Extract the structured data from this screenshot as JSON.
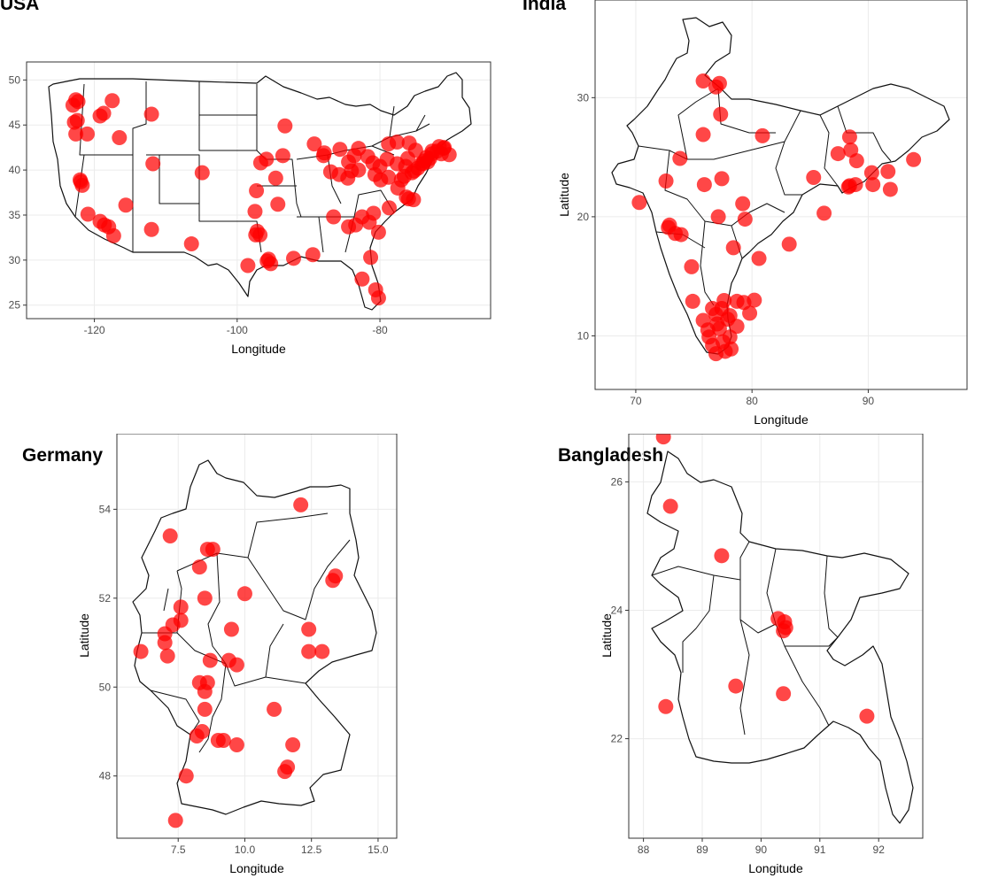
{
  "chart_data": [
    {
      "type": "scatter",
      "title": "USA",
      "xlabel": "Longitude",
      "ylabel": "",
      "xlim": [
        -129.5,
        -64.5
      ],
      "ylim": [
        23.5,
        52
      ],
      "xticks": [
        -120,
        -100,
        -80
      ],
      "yticks": [
        25,
        30,
        35,
        40,
        45,
        50
      ],
      "grid": true,
      "points": [
        [
          -122.6,
          47.8
        ],
        [
          -122.3,
          47.6
        ],
        [
          -123,
          47.2
        ],
        [
          -122.4,
          45.5
        ],
        [
          -122.8,
          45.3
        ],
        [
          -122.6,
          44
        ],
        [
          -121,
          44
        ],
        [
          -119.2,
          46
        ],
        [
          -118.7,
          46.3
        ],
        [
          -117.5,
          47.7
        ],
        [
          -116.5,
          43.6
        ],
        [
          -112,
          46.2
        ],
        [
          -111.8,
          40.7
        ],
        [
          -121.9,
          38.7
        ],
        [
          -121.7,
          38.3
        ],
        [
          -122,
          38.9
        ],
        [
          -120.9,
          35.1
        ],
        [
          -119.2,
          34.3
        ],
        [
          -118.6,
          33.9
        ],
        [
          -118,
          33.7
        ],
        [
          -117.3,
          32.7
        ],
        [
          -115.6,
          36.1
        ],
        [
          -112,
          33.4
        ],
        [
          -104.9,
          39.7
        ],
        [
          -106.4,
          31.8
        ],
        [
          -97.4,
          32.8
        ],
        [
          -96.8,
          32.8
        ],
        [
          -97.2,
          33.2
        ],
        [
          -98.5,
          29.4
        ],
        [
          -95.8,
          29.9
        ],
        [
          -95.3,
          29.6
        ],
        [
          -95.6,
          30.1
        ],
        [
          -97.5,
          35.4
        ],
        [
          -97.3,
          37.7
        ],
        [
          -95.9,
          41.2
        ],
        [
          -94.6,
          39.1
        ],
        [
          -93.6,
          41.6
        ],
        [
          -94.3,
          36.2
        ],
        [
          -93.3,
          44.9
        ],
        [
          -89.2,
          42.9
        ],
        [
          -87.8,
          41.9
        ],
        [
          -87.9,
          41.6
        ],
        [
          -96.7,
          40.8
        ],
        [
          -92.1,
          30.2
        ],
        [
          -89.4,
          30.6
        ],
        [
          -86.5,
          34.8
        ],
        [
          -84.4,
          33.7
        ],
        [
          -83.4,
          33.9
        ],
        [
          -82.5,
          34.8
        ],
        [
          -81.5,
          34.2
        ],
        [
          -80.9,
          35.2
        ],
        [
          -80.2,
          33.1
        ],
        [
          -82.5,
          27.9
        ],
        [
          -81.3,
          30.3
        ],
        [
          -80.6,
          26.7
        ],
        [
          -80.2,
          25.8
        ],
        [
          -86.9,
          39.8
        ],
        [
          -85.7,
          39.5
        ],
        [
          -84.5,
          39.1
        ],
        [
          -84,
          39.9
        ],
        [
          -83,
          40
        ],
        [
          -84.4,
          40.9
        ],
        [
          -83.6,
          41.6
        ],
        [
          -85.6,
          42.3
        ],
        [
          -83,
          42.4
        ],
        [
          -81.7,
          41.5
        ],
        [
          -81,
          40.8
        ],
        [
          -80,
          40.4
        ],
        [
          -80.7,
          39.5
        ],
        [
          -79.9,
          38.9
        ],
        [
          -78.8,
          39.2
        ],
        [
          -79,
          41.2
        ],
        [
          -77.5,
          38
        ],
        [
          -77,
          38.9
        ],
        [
          -76.6,
          39.3
        ],
        [
          -76.3,
          37
        ],
        [
          -75.5,
          39.7
        ],
        [
          -75.2,
          39.9
        ],
        [
          -74.7,
          40.2
        ],
        [
          -74.2,
          40.7
        ],
        [
          -74,
          40.7
        ],
        [
          -73.8,
          41
        ],
        [
          -73.5,
          41.4
        ],
        [
          -73,
          41.3
        ],
        [
          -72.7,
          41.8
        ],
        [
          -71.4,
          41.8
        ],
        [
          -71.1,
          42.4
        ],
        [
          -71,
          42.5
        ],
        [
          -70.3,
          41.7
        ],
        [
          -75.9,
          43
        ],
        [
          -77.6,
          43.1
        ],
        [
          -78.8,
          42.9
        ],
        [
          -75,
          42.2
        ],
        [
          -76.1,
          41.3
        ],
        [
          -76.4,
          40.4
        ],
        [
          -77.6,
          40.7
        ],
        [
          -73.3,
          40.9
        ],
        [
          -72,
          42.1
        ],
        [
          -72.7,
          42.1
        ],
        [
          -71.7,
          42.6
        ],
        [
          -78.7,
          35.8
        ],
        [
          -76,
          36.8
        ],
        [
          -75.3,
          36.7
        ]
      ]
    },
    {
      "type": "scatter",
      "title": "India",
      "xlabel": "Longitude",
      "ylabel": "Latitude",
      "xlim": [
        66.5,
        98.5
      ],
      "ylim": [
        5.5,
        38.2
      ],
      "xticks": [
        70,
        80,
        90
      ],
      "yticks": [
        10,
        20,
        30
      ],
      "grid": true,
      "points": [
        [
          75.8,
          31.4
        ],
        [
          76.9,
          30.9
        ],
        [
          77.2,
          31.2
        ],
        [
          77.3,
          28.6
        ],
        [
          80.9,
          26.8
        ],
        [
          75.8,
          26.9
        ],
        [
          73.8,
          24.9
        ],
        [
          72.6,
          23
        ],
        [
          70.3,
          21.2
        ],
        [
          72.8,
          19.1
        ],
        [
          72.9,
          19.3
        ],
        [
          73.4,
          18.6
        ],
        [
          73.9,
          18.5
        ],
        [
          75.9,
          22.7
        ],
        [
          77.4,
          23.2
        ],
        [
          79.2,
          21.1
        ],
        [
          77.1,
          20
        ],
        [
          79.4,
          19.8
        ],
        [
          78.4,
          17.4
        ],
        [
          80.6,
          16.5
        ],
        [
          83.2,
          17.7
        ],
        [
          74.8,
          15.8
        ],
        [
          74.9,
          12.9
        ],
        [
          75.8,
          11.3
        ],
        [
          76.2,
          10.5
        ],
        [
          76.3,
          9.9
        ],
        [
          76.9,
          8.5
        ],
        [
          77.6,
          12.97
        ],
        [
          77.4,
          12.3
        ],
        [
          76.6,
          12.3
        ],
        [
          77,
          11
        ],
        [
          78.1,
          11.7
        ],
        [
          78.7,
          10.8
        ],
        [
          78.1,
          9.9
        ],
        [
          77.7,
          8.7
        ],
        [
          80.2,
          13
        ],
        [
          79.8,
          11.9
        ],
        [
          78.7,
          12.9
        ],
        [
          77.9,
          11.4
        ],
        [
          77.2,
          10.6
        ],
        [
          76.9,
          11.8
        ],
        [
          77.5,
          9.5
        ],
        [
          76.6,
          9.2
        ],
        [
          78.2,
          8.9
        ],
        [
          79.3,
          12.8
        ],
        [
          85.3,
          23.3
        ],
        [
          86.2,
          20.3
        ],
        [
          88.3,
          22.5
        ],
        [
          88.4,
          22.6
        ],
        [
          88.9,
          22.7
        ],
        [
          87.4,
          25.3
        ],
        [
          88.4,
          26.7
        ],
        [
          88.5,
          25.6
        ],
        [
          89,
          24.7
        ],
        [
          90.3,
          23.7
        ],
        [
          90.4,
          22.7
        ],
        [
          91.7,
          23.8
        ],
        [
          91.9,
          22.3
        ],
        [
          93.9,
          24.8
        ]
      ]
    },
    {
      "type": "scatter",
      "title": "Germany",
      "xlabel": "Longitude",
      "ylabel": "Latitude",
      "xlim": [
        5.2,
        15.7
      ],
      "ylim": [
        46.6,
        55.7
      ],
      "xticks": [
        7.5,
        10.0,
        12.5,
        15.0
      ],
      "yticks": [
        48,
        50,
        52,
        54
      ],
      "grid": true,
      "points": [
        [
          12.1,
          54.1
        ],
        [
          7.2,
          53.4
        ],
        [
          8.8,
          53.1
        ],
        [
          8.6,
          53.1
        ],
        [
          8.3,
          52.7
        ],
        [
          13.4,
          52.5
        ],
        [
          13.3,
          52.4
        ],
        [
          10,
          52.1
        ],
        [
          8.5,
          52
        ],
        [
          7.6,
          51.8
        ],
        [
          7,
          51.2
        ],
        [
          7.3,
          51.4
        ],
        [
          7.6,
          51.5
        ],
        [
          6.1,
          50.8
        ],
        [
          7,
          51
        ],
        [
          7.1,
          50.7
        ],
        [
          9.5,
          51.3
        ],
        [
          12.4,
          51.3
        ],
        [
          12.4,
          50.8
        ],
        [
          12.9,
          50.8
        ],
        [
          8.7,
          50.6
        ],
        [
          9.4,
          50.6
        ],
        [
          9.7,
          50.5
        ],
        [
          8.3,
          50.1
        ],
        [
          8.6,
          50.1
        ],
        [
          8.5,
          49.9
        ],
        [
          8.5,
          49.5
        ],
        [
          11.1,
          49.5
        ],
        [
          8.4,
          49
        ],
        [
          8.2,
          48.9
        ],
        [
          9,
          48.8
        ],
        [
          9.2,
          48.8
        ],
        [
          9.7,
          48.7
        ],
        [
          11.8,
          48.7
        ],
        [
          11.6,
          48.2
        ],
        [
          11.5,
          48.1
        ],
        [
          7.8,
          48
        ],
        [
          7.4,
          47
        ]
      ]
    },
    {
      "type": "scatter",
      "title": "Bangladesh",
      "xlabel": "Longitude",
      "ylabel": "Latitude",
      "xlim": [
        87.75,
        92.75
      ],
      "ylim": [
        20.45,
        26.75
      ],
      "xticks": [
        88,
        89,
        90,
        91,
        92
      ],
      "yticks": [
        22,
        24,
        26
      ],
      "grid": true,
      "points": [
        [
          88.34,
          26.7
        ],
        [
          88.46,
          25.62
        ],
        [
          89.33,
          24.85
        ],
        [
          90.29,
          23.87
        ],
        [
          90.4,
          23.82
        ],
        [
          90.42,
          23.73
        ],
        [
          90.38,
          23.68
        ],
        [
          89.57,
          22.82
        ],
        [
          88.38,
          22.5
        ],
        [
          90.38,
          22.7
        ],
        [
          91.8,
          22.35
        ]
      ]
    }
  ]
}
